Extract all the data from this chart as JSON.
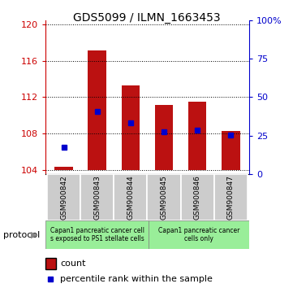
{
  "title": "GDS5099 / ILMN_1663453",
  "samples": [
    "GSM900842",
    "GSM900843",
    "GSM900844",
    "GSM900845",
    "GSM900846",
    "GSM900847"
  ],
  "bar_heights": [
    104.3,
    117.15,
    113.3,
    111.15,
    111.5,
    108.3
  ],
  "bar_base": 104.0,
  "percentile_values": [
    106.5,
    110.4,
    109.2,
    108.2,
    108.35,
    107.85
  ],
  "ylim_left": [
    103.5,
    120.5
  ],
  "ylim_right": [
    0,
    100
  ],
  "yticks_left": [
    104,
    108,
    112,
    116,
    120
  ],
  "yticks_right": [
    0,
    25,
    50,
    75,
    100
  ],
  "bar_color": "#BB1111",
  "percentile_color": "#0000CC",
  "group1_label": "Capan1 pancreatic cancer cell\ns exposed to PS1 stellate cells",
  "group2_label": "Capan1 pancreatic cancer\ncells only",
  "group1_color": "#99EE99",
  "group2_color": "#99EE99",
  "protocol_label": "protocol",
  "legend_count_label": "count",
  "legend_pct_label": "percentile rank within the sample",
  "tick_label_color_left": "#CC0000",
  "tick_label_color_right": "#0000CC",
  "bar_width": 0.55,
  "bg_color_plot": "#FFFFFF",
  "bg_color_xtick": "#CCCCCC",
  "right_ytick_labels": [
    "0",
    "25",
    "50",
    "75",
    "100%"
  ]
}
